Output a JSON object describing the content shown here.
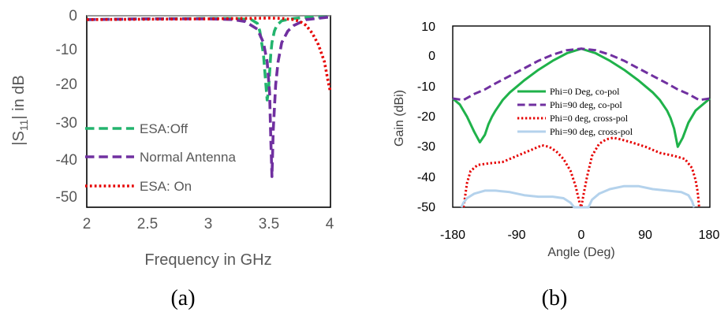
{
  "chart_data": [
    {
      "type": "line",
      "xlabel": "Frequency in GHz",
      "ylabel": "|S11| in dB",
      "xlim": [
        2,
        4
      ],
      "ylim": [
        -50,
        0
      ],
      "xticks": [
        "2",
        "2.5",
        "3",
        "3.5",
        "4"
      ],
      "yticks": [
        "0",
        "-10",
        "-20",
        "-30",
        "-40",
        "-50"
      ],
      "caption": "(a)",
      "series": [
        {
          "name": "ESA:Off",
          "color": "#23b46e",
          "style": "dashed",
          "x": [
            2.0,
            2.5,
            3.0,
            3.2,
            3.35,
            3.4,
            3.42,
            3.45,
            3.47,
            3.48,
            3.49,
            3.5,
            3.51,
            3.52,
            3.54,
            3.56,
            3.6,
            3.7,
            3.8,
            4.0
          ],
          "y": [
            -1.0,
            -0.8,
            -0.7,
            -0.7,
            -1.0,
            -2.0,
            -4.0,
            -10.0,
            -18.0,
            -22.0,
            -20.0,
            -15.0,
            -10.0,
            -7.0,
            -4.0,
            -2.5,
            -1.3,
            -0.7,
            -0.4,
            -0.3
          ]
        },
        {
          "name": "Normal Antenna",
          "color": "#7030a0",
          "style": "dashed",
          "x": [
            2.0,
            2.5,
            3.0,
            3.2,
            3.3,
            3.4,
            3.45,
            3.48,
            3.5,
            3.51,
            3.52,
            3.53,
            3.55,
            3.57,
            3.6,
            3.65,
            3.7,
            3.8,
            4.0
          ],
          "y": [
            -1.0,
            -0.8,
            -0.8,
            -1.0,
            -1.5,
            -3.5,
            -7.0,
            -12.0,
            -20.0,
            -32.0,
            -42.0,
            -30.0,
            -18.0,
            -12.0,
            -7.0,
            -4.0,
            -2.5,
            -1.0,
            -0.3
          ]
        },
        {
          "name": "ESA: On",
          "color": "#e60000",
          "style": "dotted",
          "x": [
            2.0,
            2.5,
            3.0,
            3.3,
            3.5,
            3.6,
            3.7,
            3.75,
            3.8,
            3.85,
            3.9,
            3.95,
            3.98,
            4.0
          ],
          "y": [
            -1.0,
            -0.9,
            -0.8,
            -0.7,
            -0.6,
            -0.7,
            -1.0,
            -1.5,
            -2.5,
            -4.5,
            -7.5,
            -12.0,
            -17.0,
            -20.0
          ]
        }
      ]
    },
    {
      "type": "line",
      "xlabel": "Angle (Deg)",
      "ylabel": "Gain (dBi)",
      "xlim": [
        -180,
        180
      ],
      "ylim": [
        -50,
        10
      ],
      "xticks": [
        "-180",
        "-90",
        "0",
        "90",
        "180"
      ],
      "yticks": [
        "10",
        "0",
        "-10",
        "-20",
        "-30",
        "-40",
        "-50"
      ],
      "caption": "(b)",
      "series": [
        {
          "name": "Phi=0 Deg, co-pol",
          "color": "#1fb24a",
          "style": "solid",
          "x": [
            -180,
            -170,
            -160,
            -150,
            -142,
            -135,
            -130,
            -125,
            -120,
            -110,
            -100,
            -90,
            -80,
            -60,
            -40,
            -20,
            0,
            20,
            40,
            60,
            80,
            90,
            100,
            110,
            120,
            125,
            130,
            135,
            142,
            150,
            160,
            170,
            180
          ],
          "y": [
            -14.0,
            -16.0,
            -20.0,
            -25.0,
            -28.5,
            -26.0,
            -22.5,
            -20.0,
            -18.0,
            -14.5,
            -12.0,
            -10.0,
            -8.0,
            -4.5,
            -1.5,
            1.0,
            2.5,
            1.0,
            -1.5,
            -4.5,
            -8.0,
            -10.0,
            -12.0,
            -14.5,
            -18.0,
            -20.5,
            -24.0,
            -30.0,
            -27.0,
            -22.0,
            -18.0,
            -16.0,
            -14.0
          ]
        },
        {
          "name": "Phi=90 deg, co-pol",
          "color": "#7030a0",
          "style": "dashed",
          "x": [
            -180,
            -165,
            -150,
            -135,
            -120,
            -100,
            -80,
            -60,
            -40,
            -20,
            0,
            20,
            40,
            60,
            80,
            100,
            120,
            135,
            150,
            165,
            180
          ],
          "y": [
            -14.0,
            -14.5,
            -12.5,
            -11.0,
            -9.0,
            -6.5,
            -4.0,
            -1.5,
            0.5,
            2.0,
            2.5,
            2.0,
            0.5,
            -1.5,
            -4.0,
            -6.5,
            -9.0,
            -11.0,
            -12.5,
            -14.5,
            -14.0
          ]
        },
        {
          "name": "Phi=0 deg, cross-pol",
          "color": "#e60000",
          "style": "dotted",
          "x": [
            -165,
            -163,
            -160,
            -155,
            -145,
            -130,
            -110,
            -90,
            -70,
            -55,
            -45,
            -35,
            -25,
            -15,
            -8,
            -3,
            0,
            3,
            8,
            15,
            25,
            35,
            45,
            55,
            70,
            90,
            110,
            130,
            145,
            155,
            160,
            163,
            165
          ],
          "y": [
            -50.0,
            -47.0,
            -42.0,
            -38.0,
            -36.0,
            -35.5,
            -35.0,
            -33.0,
            -31.0,
            -29.5,
            -30.0,
            -31.5,
            -34.0,
            -38.0,
            -43.0,
            -48.0,
            -50.0,
            -46.0,
            -40.0,
            -33.0,
            -29.0,
            -27.5,
            -27.0,
            -27.5,
            -28.5,
            -30.0,
            -32.0,
            -33.0,
            -34.0,
            -37.0,
            -41.0,
            -45.0,
            -50.0
          ]
        },
        {
          "name": "Phi=90 deg, cross-pol",
          "color": "#b4d2ec",
          "style": "solid",
          "x": [
            -168,
            -165,
            -160,
            -150,
            -135,
            -120,
            -100,
            -80,
            -60,
            -40,
            -25,
            -15,
            -10,
            10,
            15,
            25,
            40,
            60,
            80,
            100,
            120,
            140,
            150,
            155,
            158
          ],
          "y": [
            -50.0,
            -48.5,
            -47.0,
            -45.5,
            -44.5,
            -44.5,
            -45.0,
            -46.0,
            -46.5,
            -46.5,
            -47.0,
            -48.5,
            -50.0,
            -50.0,
            -47.5,
            -45.5,
            -44.0,
            -43.0,
            -43.0,
            -44.0,
            -44.5,
            -45.0,
            -46.0,
            -48.0,
            -50.0
          ]
        }
      ]
    }
  ]
}
